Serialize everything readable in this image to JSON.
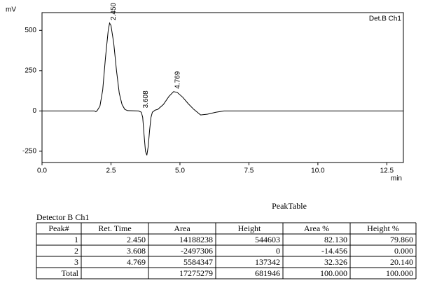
{
  "chart_data": {
    "type": "line",
    "y_label": "mV",
    "x_label": "min",
    "annotation": "Det.B Ch1",
    "color": "#000000",
    "x": [
      0,
      1.9,
      1.95,
      2.0,
      2.1,
      2.2,
      2.3,
      2.4,
      2.45,
      2.5,
      2.6,
      2.7,
      2.8,
      2.9,
      3.0,
      3.1,
      3.5,
      3.6,
      3.65,
      3.7,
      3.75,
      3.8,
      3.85,
      3.9,
      3.95,
      4.0,
      4.1,
      4.2,
      4.4,
      4.6,
      4.77,
      4.9,
      5.1,
      5.3,
      5.5,
      5.75,
      6.0,
      6.3,
      6.6,
      13.1
    ],
    "values": [
      0,
      0,
      -5,
      2,
      30,
      130,
      330,
      500,
      545,
      530,
      420,
      250,
      110,
      40,
      10,
      2,
      0,
      -8,
      -40,
      -150,
      -250,
      -275,
      -220,
      -120,
      -40,
      -8,
      5,
      10,
      40,
      90,
      120,
      115,
      85,
      45,
      10,
      -25,
      -20,
      -8,
      0,
      0
    ],
    "xlim": [
      0,
      13.1
    ],
    "ylim": [
      -320,
      610
    ],
    "xticks": [
      {
        "value": 0,
        "label": "0.0"
      },
      {
        "value": 2.5,
        "label": "2.5"
      },
      {
        "value": 5,
        "label": "5.0"
      },
      {
        "value": 7.5,
        "label": "7.5"
      },
      {
        "value": 10,
        "label": "10.0"
      },
      {
        "value": 12.5,
        "label": "12.5"
      }
    ],
    "yticks": [
      500,
      250,
      0,
      -250
    ],
    "peak_labels": [
      {
        "value": 2.45,
        "label": "2.450"
      },
      {
        "value": 3.608,
        "label": "3.608"
      },
      {
        "value": 4.769,
        "label": "4.769"
      }
    ]
  },
  "peak_table": {
    "title": "PeakTable",
    "detector": "Detector B Ch1",
    "columns": [
      "Peak#",
      "Ret. Time",
      "Area",
      "Height",
      "Area %",
      "Height %"
    ],
    "rows": [
      [
        "1",
        "2.450",
        "14188238",
        "544603",
        "82.130",
        "79.860"
      ],
      [
        "2",
        "3.608",
        "-2497306",
        "0",
        "-14.456",
        "0.000"
      ],
      [
        "3",
        "4.769",
        "5584347",
        "137342",
        "32.326",
        "20.140"
      ]
    ],
    "total": {
      "label": "Total",
      "cells": [
        "17275279",
        "681946",
        "100.000",
        "100.000"
      ]
    }
  }
}
